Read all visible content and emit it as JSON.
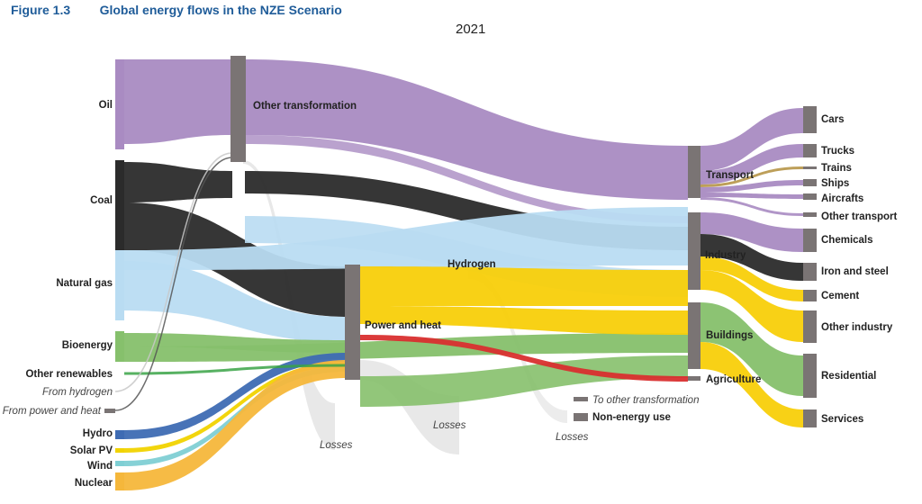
{
  "figure": {
    "number": "Figure 1.3",
    "title": "Global energy flows in the NZE Scenario",
    "year": "2021"
  },
  "colors": {
    "oil": "#a98bc2",
    "coal": "#2b2b2b",
    "natural_gas": "#b9dcf2",
    "bioenergy": "#86c06c",
    "other_renewables": "#3aa346",
    "hydrogen": "#c6c6c6",
    "hydro": "#3e6bb3",
    "solar": "#f1d300",
    "wind": "#7fcfd4",
    "nuclear": "#f5b73b",
    "electricity": "#f8cf0a",
    "heat": "#d92f2f",
    "losses": "#d9d9d9",
    "node": "#7a7474"
  },
  "sources": [
    {
      "key": "oil",
      "label": "Oil"
    },
    {
      "key": "coal",
      "label": "Coal"
    },
    {
      "key": "natural_gas",
      "label": "Natural gas"
    },
    {
      "key": "bioenergy",
      "label": "Bioenergy"
    },
    {
      "key": "other_renewables",
      "label": "Other renewables"
    },
    {
      "key": "from_hydrogen",
      "label": "From hydrogen"
    },
    {
      "key": "from_power_heat",
      "label": "From power and heat"
    },
    {
      "key": "hydro",
      "label": "Hydro"
    },
    {
      "key": "solar",
      "label": "Solar PV"
    },
    {
      "key": "wind",
      "label": "Wind"
    },
    {
      "key": "nuclear",
      "label": "Nuclear"
    }
  ],
  "transformations": [
    {
      "key": "other_transformation",
      "label": "Other transformation"
    },
    {
      "key": "power_heat",
      "label": "Power and heat"
    },
    {
      "key": "hydrogen",
      "label": "Hydrogen"
    }
  ],
  "losses_labels": [
    "Losses",
    "Losses",
    "Losses"
  ],
  "final_uses": [
    {
      "key": "to_other_transformation",
      "label": "To other transformation"
    },
    {
      "key": "non_energy_use",
      "label": "Non-energy use"
    }
  ],
  "sectors": [
    {
      "key": "transport",
      "label": "Transport"
    },
    {
      "key": "industry",
      "label": "Industry"
    },
    {
      "key": "buildings",
      "label": "Buildings"
    },
    {
      "key": "agriculture",
      "label": "Agriculture"
    }
  ],
  "end_uses": [
    {
      "key": "cars",
      "label": "Cars"
    },
    {
      "key": "trucks",
      "label": "Trucks"
    },
    {
      "key": "trains",
      "label": "Trains"
    },
    {
      "key": "ships",
      "label": "Ships"
    },
    {
      "key": "aircrafts",
      "label": "Aircrafts"
    },
    {
      "key": "other_transport",
      "label": "Other transport"
    },
    {
      "key": "chemicals",
      "label": "Chemicals"
    },
    {
      "key": "iron_steel",
      "label": "Iron and steel"
    },
    {
      "key": "cement",
      "label": "Cement"
    },
    {
      "key": "other_industry",
      "label": "Other industry"
    },
    {
      "key": "residential",
      "label": "Residential"
    },
    {
      "key": "services",
      "label": "Services"
    }
  ]
}
